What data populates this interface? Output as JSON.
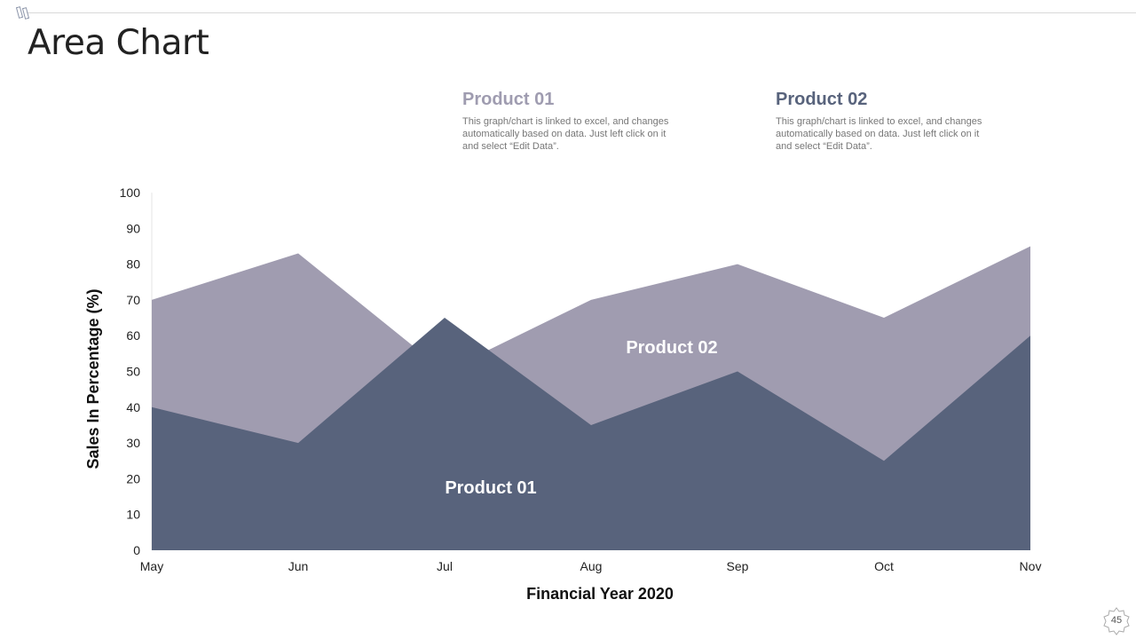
{
  "slide": {
    "title": "Area Chart",
    "page_number": "45"
  },
  "legend": [
    {
      "title": "Product 01",
      "text": "This graph/chart is linked to excel, and changes automatically based on data. Just left click on it and select “Edit Data”.",
      "color": "#9f9cb0"
    },
    {
      "title": "Product 02",
      "text": "This graph/chart is linked to excel, and changes automatically based on data. Just left click on it and select “Edit Data”.",
      "color": "#58637c"
    }
  ],
  "chart_data": {
    "type": "area",
    "categories": [
      "May",
      "Jun",
      "Jul",
      "Aug",
      "Sep",
      "Oct",
      "Nov"
    ],
    "series": [
      {
        "name": "Product 02",
        "values": [
          70,
          83,
          50,
          70,
          80,
          65,
          85
        ],
        "color": "#a09cb0",
        "label": "Product 02"
      },
      {
        "name": "Product 01",
        "values": [
          40,
          30,
          65,
          35,
          50,
          25,
          60
        ],
        "color": "#58637c",
        "label": "Product 01"
      }
    ],
    "xlabel": "Financial Year 2020",
    "ylabel": "Sales In Percentage (%)",
    "ylim": [
      0,
      100
    ],
    "yticks": [
      0,
      10,
      20,
      30,
      40,
      50,
      60,
      70,
      80,
      90,
      100
    ],
    "grid": false
  }
}
